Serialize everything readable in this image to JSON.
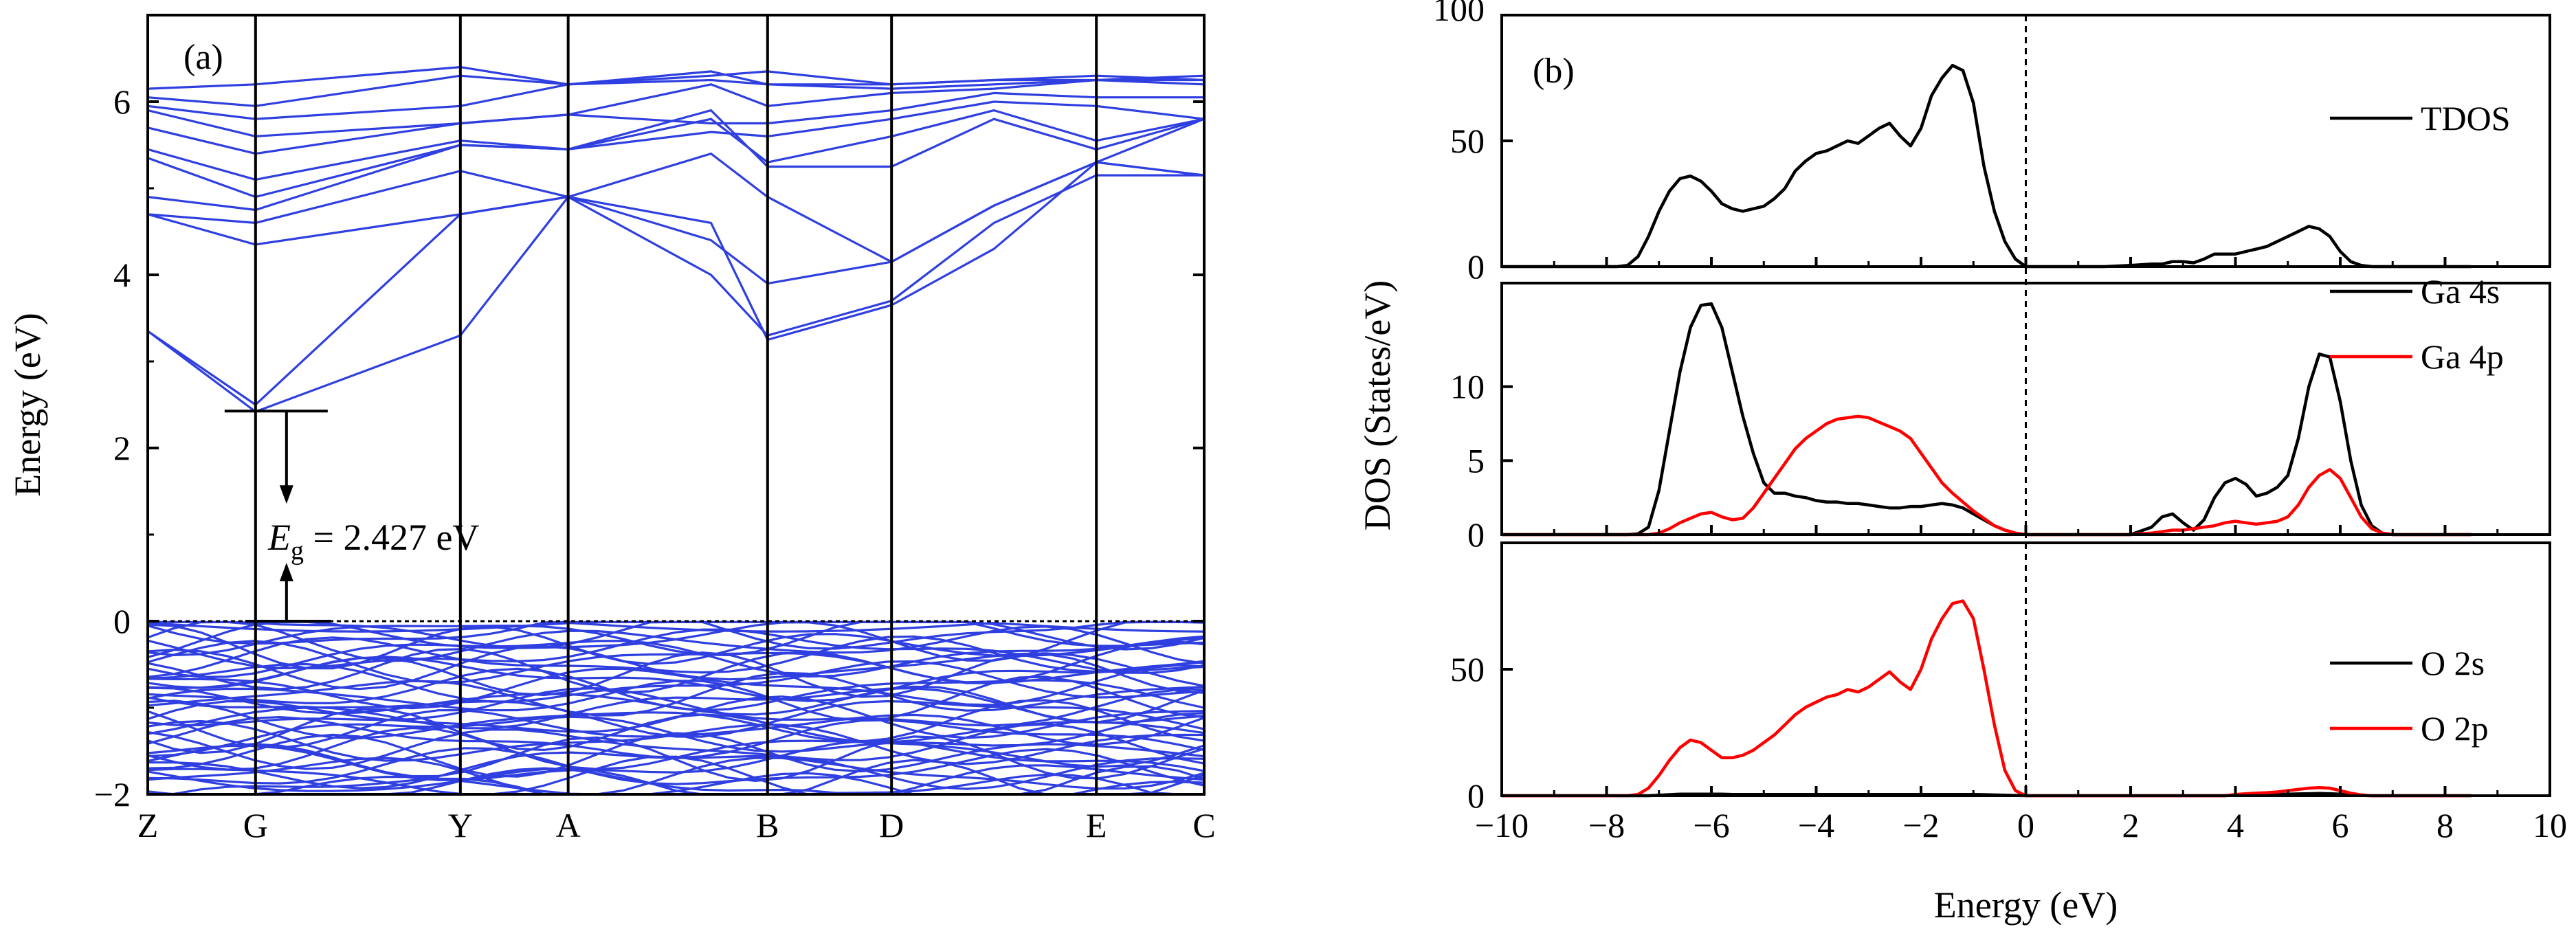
{
  "chart_data": [
    {
      "type": "line",
      "panel_label": "(a)",
      "ylabel": "Energy (eV)",
      "ylim": [
        -2,
        7
      ],
      "yticks": [
        "6",
        "4",
        "2",
        "0",
        "−2"
      ],
      "ytick_values": [
        6,
        4,
        2,
        0,
        -2
      ],
      "kpath": [
        "Z",
        "G",
        "Y",
        "A",
        "B",
        "D",
        "E",
        "C"
      ],
      "kpath_positions": [
        0,
        1.0,
        2.9,
        3.9,
        5.75,
        6.9,
        8.8,
        9.8
      ],
      "fermi_level": 0,
      "band_gap_label_var": "E",
      "band_gap_label_sub": "g",
      "band_gap_label_rest": " = 2.427 eV",
      "band_gap_eV": 2.427,
      "cbm_eV": 2.427,
      "vbm_eV": 0,
      "line_color": "#2f3fe0",
      "conduction_bands": [
        [
          3.35,
          2.5,
          4.7,
          4.9,
          4.0,
          3.3,
          3.7,
          4.6,
          5.15,
          5.15
        ],
        [
          3.35,
          2.42,
          3.3,
          4.9,
          4.6,
          3.25,
          3.65,
          4.3,
          5.3,
          5.15
        ],
        [
          4.7,
          4.35,
          4.7,
          4.9,
          4.4,
          3.9,
          4.15,
          4.8,
          5.3,
          5.15
        ],
        [
          4.7,
          4.6,
          5.2,
          4.9,
          5.4,
          4.9,
          4.15,
          4.8,
          5.3,
          5.8
        ],
        [
          4.9,
          4.75,
          5.5,
          5.45,
          5.9,
          5.25,
          5.25,
          5.8,
          5.45,
          5.8
        ],
        [
          5.35,
          4.9,
          5.5,
          5.45,
          5.8,
          5.3,
          5.6,
          5.9,
          5.55,
          5.8
        ],
        [
          5.45,
          5.1,
          5.55,
          5.45,
          5.65,
          5.6,
          5.8,
          6.0,
          5.95,
          5.8
        ],
        [
          5.7,
          5.4,
          5.75,
          5.85,
          5.75,
          5.75,
          5.9,
          6.1,
          6.05,
          6.05
        ],
        [
          5.9,
          5.6,
          5.75,
          5.85,
          6.2,
          5.95,
          6.1,
          6.15,
          6.25,
          6.2
        ],
        [
          5.95,
          5.8,
          5.95,
          6.2,
          6.25,
          6.2,
          6.15,
          6.2,
          6.25,
          6.25
        ],
        [
          6.05,
          5.95,
          6.3,
          6.2,
          6.35,
          6.2,
          6.2,
          6.25,
          6.25,
          6.3
        ],
        [
          6.15,
          6.2,
          6.4,
          6.2,
          6.3,
          6.35,
          6.2,
          6.25,
          6.3,
          6.25
        ]
      ],
      "valence_band_count": 44,
      "valence_band_range": [
        -2,
        0
      ]
    },
    {
      "type": "line",
      "panel_label": "(b)",
      "xlabel": "Energy (eV)",
      "ylabel": "DOS (States/eV)",
      "xlim": [
        -10,
        10
      ],
      "xticks": [
        "−10",
        "−8",
        "−6",
        "−4",
        "−2",
        "0",
        "2",
        "4",
        "6",
        "8",
        "10"
      ],
      "xtick_values": [
        -10,
        -8,
        -6,
        -4,
        -2,
        0,
        2,
        4,
        6,
        8,
        10
      ],
      "x": [
        -10,
        -7.8,
        -7.6,
        -7.4,
        -7.2,
        -7.0,
        -6.8,
        -6.6,
        -6.4,
        -6.2,
        -6.0,
        -5.8,
        -5.6,
        -5.4,
        -5.2,
        -5.0,
        -4.8,
        -4.6,
        -4.4,
        -4.2,
        -4.0,
        -3.8,
        -3.6,
        -3.4,
        -3.2,
        -3.0,
        -2.8,
        -2.6,
        -2.4,
        -2.2,
        -2.0,
        -1.8,
        -1.6,
        -1.4,
        -1.2,
        -1.0,
        -0.8,
        -0.6,
        -0.4,
        -0.2,
        0,
        0.2,
        1.5,
        2.0,
        2.4,
        2.6,
        2.8,
        3.0,
        3.2,
        3.4,
        3.6,
        3.8,
        4.0,
        4.2,
        4.4,
        4.6,
        4.8,
        5.0,
        5.2,
        5.4,
        5.6,
        5.8,
        6.0,
        6.2,
        6.4,
        6.6,
        6.8,
        7.0,
        8.5
      ],
      "subplots": [
        {
          "ylim": [
            0,
            100
          ],
          "yticks": [
            "100",
            "50",
            "0"
          ],
          "ytick_values": [
            100,
            50,
            0
          ],
          "legend_position": "top-right",
          "series": [
            {
              "name": "TDOS",
              "color": "#000000",
              "values": [
                0,
                0,
                0.5,
                4,
                12,
                22,
                30,
                35,
                36,
                34,
                30,
                25,
                23,
                22,
                23,
                24,
                27,
                31,
                38,
                42,
                45,
                46,
                48,
                50,
                49,
                52,
                55,
                57,
                52,
                48,
                55,
                68,
                75,
                80,
                78,
                65,
                40,
                22,
                10,
                3,
                0,
                0,
                0,
                0.5,
                1,
                1,
                2,
                2,
                1.5,
                3,
                5,
                5,
                5,
                6,
                7,
                8,
                10,
                12,
                14,
                16,
                15,
                12,
                6,
                2,
                0.5,
                0,
                0,
                0,
                0
              ]
            }
          ]
        },
        {
          "ylim": [
            0,
            17
          ],
          "yticks": [
            "10",
            "5",
            "0"
          ],
          "ytick_values": [
            10,
            5,
            0
          ],
          "legend_position": "top-right",
          "series": [
            {
              "name": "Ga 4s",
              "color": "#000000",
              "values": [
                0,
                0,
                0,
                0.05,
                0.5,
                3,
                7,
                11,
                14,
                15.5,
                15.6,
                14,
                11,
                8,
                5.5,
                3.5,
                2.8,
                2.8,
                2.6,
                2.5,
                2.3,
                2.2,
                2.2,
                2.1,
                2.1,
                2.0,
                1.9,
                1.8,
                1.8,
                1.9,
                1.9,
                2.0,
                2.1,
                2.0,
                1.8,
                1.4,
                1.0,
                0.6,
                0.3,
                0.1,
                0,
                0,
                0,
                0,
                0.5,
                1.2,
                1.4,
                0.8,
                0.3,
                1.0,
                2.5,
                3.5,
                3.8,
                3.4,
                2.6,
                2.8,
                3.2,
                4.0,
                6.5,
                10.0,
                12.2,
                12.0,
                9.0,
                5.0,
                2.0,
                0.6,
                0.1,
                0,
                0
              ]
            },
            {
              "name": "Ga 4p",
              "color": "#ff0000",
              "values": [
                0,
                0,
                0,
                0,
                0,
                0.1,
                0.4,
                0.8,
                1.1,
                1.4,
                1.5,
                1.2,
                1.0,
                1.1,
                1.8,
                2.8,
                3.8,
                4.8,
                5.8,
                6.5,
                7.0,
                7.5,
                7.8,
                7.9,
                8.0,
                7.9,
                7.6,
                7.3,
                7.0,
                6.5,
                5.5,
                4.5,
                3.5,
                2.8,
                2.2,
                1.6,
                1.1,
                0.6,
                0.3,
                0.1,
                0,
                0,
                0,
                0,
                0.1,
                0.2,
                0.3,
                0.3,
                0.4,
                0.5,
                0.6,
                0.8,
                0.9,
                0.8,
                0.7,
                0.8,
                0.9,
                1.2,
                2.0,
                3.2,
                4.0,
                4.4,
                3.8,
                2.5,
                1.2,
                0.4,
                0.1,
                0,
                0
              ]
            }
          ]
        },
        {
          "ylim": [
            0,
            100
          ],
          "yticks": [
            "50",
            "0"
          ],
          "ytick_values": [
            50,
            0
          ],
          "legend_position": "right",
          "series": [
            {
              "name": "O 2s",
              "color": "#000000",
              "values": [
                0,
                0,
                0,
                0,
                0,
                0.2,
                0.4,
                0.6,
                0.6,
                0.6,
                0.6,
                0.6,
                0.5,
                0.5,
                0.5,
                0.5,
                0.5,
                0.5,
                0.5,
                0.5,
                0.5,
                0.5,
                0.5,
                0.5,
                0.5,
                0.5,
                0.5,
                0.5,
                0.5,
                0.5,
                0.5,
                0.5,
                0.5,
                0.5,
                0.5,
                0.5,
                0.4,
                0.3,
                0.2,
                0.1,
                0,
                0,
                0,
                0,
                0,
                0,
                0,
                0,
                0,
                0,
                0,
                0,
                0.2,
                0.4,
                0.5,
                0.5,
                0.5,
                0.6,
                0.7,
                0.8,
                0.9,
                0.8,
                0.6,
                0.3,
                0.1,
                0,
                0,
                0,
                0
              ]
            },
            {
              "name": "O 2p",
              "color": "#ff0000",
              "values": [
                0,
                0,
                0,
                0.5,
                3,
                8,
                14,
                19,
                22,
                21,
                18,
                15,
                15,
                16,
                18,
                21,
                24,
                28,
                32,
                35,
                37,
                39,
                40,
                42,
                41,
                43,
                46,
                49,
                45,
                42,
                50,
                62,
                70,
                76,
                77,
                70,
                50,
                28,
                10,
                2,
                0,
                0,
                0,
                0,
                0,
                0,
                0,
                0,
                0,
                0,
                0,
                0,
                0.5,
                0.8,
                1.0,
                1.2,
                1.5,
                2.0,
                2.5,
                3.0,
                3.2,
                3.0,
                2.0,
                1.0,
                0.3,
                0,
                0,
                0,
                0
              ]
            }
          ]
        }
      ]
    }
  ]
}
